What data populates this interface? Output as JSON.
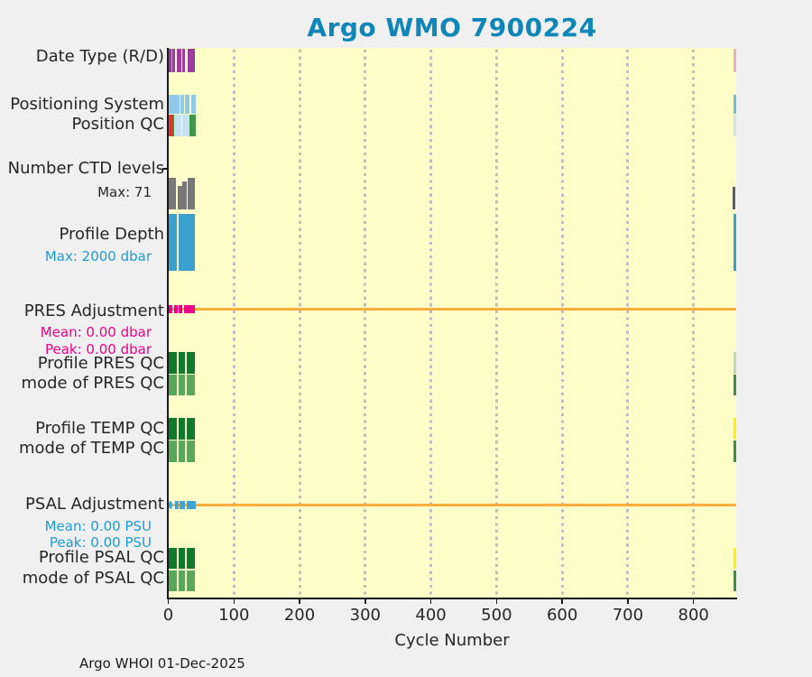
{
  "title": {
    "text": "Argo WMO 7900224",
    "color": "#0E87B8"
  },
  "footer": {
    "text": "Argo WHOI 01-Dec-2025"
  },
  "left_labels": [
    {
      "id": "date",
      "text": "Date Type (R/D)",
      "type": "main",
      "color": "#262626"
    },
    {
      "id": "pos",
      "text": "Positioning System",
      "type": "main",
      "color": "#262626"
    },
    {
      "id": "posqc",
      "text": "Position QC",
      "type": "main",
      "color": "#262626"
    },
    {
      "id": "ctd",
      "text": "Number CTD levels",
      "type": "main",
      "color": "#262626"
    },
    {
      "id": "ctdmax",
      "text": "Max: 71",
      "type": "sub",
      "color": "#262626"
    },
    {
      "id": "depth",
      "text": "Profile Depth",
      "type": "main",
      "color": "#262626"
    },
    {
      "id": "depthmax",
      "text": "Max: 2000 dbar",
      "type": "sub",
      "color": "#1E9BD6"
    },
    {
      "id": "presadj",
      "text": "PRES Adjustment",
      "type": "main",
      "color": "#262626"
    },
    {
      "id": "presmean",
      "text": "Mean: 0.00 dbar",
      "type": "sub",
      "color": "#EC008C"
    },
    {
      "id": "prespeak",
      "text": "Peak: 0.00 dbar",
      "type": "sub",
      "color": "#EC008C"
    },
    {
      "id": "presqc",
      "text": "Profile PRES QC",
      "type": "main",
      "color": "#262626"
    },
    {
      "id": "presmode",
      "text": "mode of PRES QC",
      "type": "main",
      "color": "#262626"
    },
    {
      "id": "tempqc",
      "text": "Profile TEMP QC",
      "type": "main",
      "color": "#262626"
    },
    {
      "id": "tempmode",
      "text": "mode of TEMP QC",
      "type": "main",
      "color": "#262626"
    },
    {
      "id": "psaladj",
      "text": "PSAL Adjustment",
      "type": "main",
      "color": "#262626"
    },
    {
      "id": "psalmean",
      "text": "Mean: 0.00 PSU",
      "type": "sub",
      "color": "#1E9BD6"
    },
    {
      "id": "psalpeak",
      "text": "Peak: 0.00 PSU",
      "type": "sub",
      "color": "#1E9BD6"
    },
    {
      "id": "psalqc",
      "text": "Profile PSAL QC",
      "type": "main",
      "color": "#262626"
    },
    {
      "id": "psalmode",
      "text": "mode of PSAL QC",
      "type": "main",
      "color": "#262626"
    }
  ],
  "chart_data": {
    "type": "status-timeline",
    "title": "Argo WMO 7900224",
    "xlabel": "Cycle Number",
    "x_min": 0,
    "x_max": 865,
    "x_ticks": [
      0,
      100,
      200,
      300,
      400,
      500,
      600,
      700,
      800
    ],
    "plot_bg": "#FEFEC8",
    "grid_color": "#BDBDBD",
    "annotations": {
      "ctd_levels_max": 71,
      "profile_depth_max_dbar": 2000,
      "pres_adjustment_mean_dbar": 0.0,
      "pres_adjustment_peak_dbar": 0.0,
      "psal_adjustment_mean_psu": 0.0,
      "psal_adjustment_peak_psu": 0.0
    },
    "rows": [
      {
        "id": "date_type",
        "band": "date",
        "label": "Date Type (R/D)",
        "bars": [
          {
            "c0": 0.5,
            "c1": 7,
            "color": "#9C3C9C"
          },
          {
            "c0": 8,
            "c1": 10.5,
            "color": "#9C3C9C"
          },
          {
            "c0": 13.5,
            "c1": 20,
            "color": "#9C3C9C"
          },
          {
            "c0": 20.8,
            "c1": 25.8,
            "color": "#9C3C9C"
          },
          {
            "c0": 29,
            "c1": 36,
            "color": "#9C3C9C"
          },
          {
            "c0": 36.8,
            "c1": 41,
            "color": "#9C3C9C"
          },
          {
            "c0": 860.3,
            "c1": 864.6,
            "color": "#E9AFC9"
          }
        ],
        "stripes": [
          {
            "c0": 4.4,
            "c1": 5.3,
            "color": "#CE8BCE"
          }
        ]
      },
      {
        "id": "positioning_system",
        "band": "pos",
        "label": "Positioning System",
        "bars": [
          {
            "c0": 0,
            "c1": 17,
            "color": "#90C8E8"
          },
          {
            "c0": 19,
            "c1": 24.3,
            "color": "#90C8E8"
          },
          {
            "c0": 25.5,
            "c1": 32.5,
            "color": "#90C8E8"
          },
          {
            "c0": 35,
            "c1": 42,
            "color": "#90C8E8"
          },
          {
            "c0": 860.3,
            "c1": 864.6,
            "color": "#6FBCD8"
          }
        ]
      },
      {
        "id": "position_qc",
        "band": "posqc",
        "label": "Position QC",
        "bars": [
          {
            "c0": 0,
            "c1": 8.5,
            "color": "#42984A"
          },
          {
            "c0": 8.5,
            "c1": 19.8,
            "color": "#C9E2F2"
          },
          {
            "c0": 20.8,
            "c1": 31.8,
            "color": "#C9E2F2"
          },
          {
            "c0": 31.8,
            "c1": 41.5,
            "color": "#42984A"
          },
          {
            "c0": 860.3,
            "c1": 864.6,
            "color": "#CAE6F2"
          }
        ],
        "stripes": [
          {
            "c0": 2.5,
            "c1": 3.3,
            "color": "#E53228"
          },
          {
            "c0": 5.3,
            "c1": 6.1,
            "color": "#E53228"
          }
        ]
      },
      {
        "id": "ctd_levels",
        "band": "ctd",
        "label": "Number CTD levels",
        "sublabel": "Max: 71",
        "max": 71,
        "bars": [
          {
            "c0": 0,
            "c1": 12.3,
            "v": 69,
            "color": "#787878"
          },
          {
            "c0": 15,
            "c1": 21,
            "v": 52,
            "color": "#787878"
          },
          {
            "c0": 21,
            "c1": 27.5,
            "v": 62,
            "color": "#787878"
          },
          {
            "c0": 29,
            "c1": 41,
            "v": 69,
            "color": "#787878"
          },
          {
            "c0": 860,
            "c1": 864,
            "v": 50,
            "color": "#5E5E5E"
          }
        ]
      },
      {
        "id": "profile_depth",
        "band": "depth",
        "label": "Profile Depth",
        "sublabel": "Max: 2000 dbar",
        "max": 2000,
        "bars": [
          {
            "c0": 0,
            "c1": 12.8,
            "v": 2000,
            "color": "#3AA0CE"
          },
          {
            "c0": 15.5,
            "c1": 26.3,
            "v": 2000,
            "color": "#3AA0CE"
          },
          {
            "c0": 27,
            "c1": 31.8,
            "v": 2000,
            "color": "#3AA0CE"
          },
          {
            "c0": 32.8,
            "c1": 41.2,
            "v": 2000,
            "color": "#3AA0CE"
          },
          {
            "c0": 860.3,
            "c1": 864.6,
            "v": 2000,
            "color": "#3AA0CE"
          }
        ]
      },
      {
        "id": "pres_adjustment",
        "band": "presadj",
        "label": "PRES Adjustment",
        "line": {
          "c0": 5,
          "c1": 864.6,
          "color": "#FBAE3C",
          "value_dbar": 0.0
        },
        "markers": [
          {
            "c0": 0.3,
            "c1": 6,
            "color": "#EC008C"
          },
          {
            "c0": 9.5,
            "c1": 11.2,
            "color": "#EC008C"
          },
          {
            "c0": 15.3,
            "c1": 21.3,
            "color": "#EC008C"
          },
          {
            "c0": 23.8,
            "c1": 26.8,
            "color": "#EC008C"
          },
          {
            "c0": 29.3,
            "c1": 40.6,
            "color": "#EC008C"
          }
        ]
      },
      {
        "id": "profile_pres_qc",
        "band": "presqc",
        "label": "Profile PRES QC",
        "bars": [
          {
            "c0": 0,
            "c1": 13,
            "color": "#107A2C"
          },
          {
            "c0": 15.5,
            "c1": 26,
            "color": "#107A2C"
          },
          {
            "c0": 27.6,
            "c1": 40.6,
            "color": "#107A2C"
          },
          {
            "c0": 860.3,
            "c1": 864.6,
            "color": "#BCD9BC"
          }
        ]
      },
      {
        "id": "mode_pres_qc",
        "band": "presmode",
        "label": "mode of PRES QC",
        "bars": [
          {
            "c0": 0,
            "c1": 13,
            "color": "#58A85C"
          },
          {
            "c0": 15.5,
            "c1": 26,
            "color": "#58A85C"
          },
          {
            "c0": 27.6,
            "c1": 40.6,
            "color": "#58A85C"
          },
          {
            "c0": 860.3,
            "c1": 864.6,
            "color": "#3E8E49"
          }
        ]
      },
      {
        "id": "profile_temp_qc",
        "band": "tempqc",
        "label": "Profile TEMP QC",
        "bars": [
          {
            "c0": 0,
            "c1": 13,
            "color": "#107A2C"
          },
          {
            "c0": 15.5,
            "c1": 26,
            "color": "#107A2C"
          },
          {
            "c0": 27.6,
            "c1": 40.6,
            "color": "#107A2C"
          },
          {
            "c0": 860.3,
            "c1": 864.6,
            "color": "#FFF100"
          }
        ]
      },
      {
        "id": "mode_temp_qc",
        "band": "tempmode",
        "label": "mode of TEMP QC",
        "bars": [
          {
            "c0": 0,
            "c1": 13,
            "color": "#58A85C"
          },
          {
            "c0": 15.5,
            "c1": 26,
            "color": "#58A85C"
          },
          {
            "c0": 27.6,
            "c1": 40.6,
            "color": "#58A85C"
          },
          {
            "c0": 860.3,
            "c1": 864.6,
            "color": "#3E8E49"
          }
        ]
      },
      {
        "id": "psal_adjustment",
        "band": "psaladj",
        "label": "PSAL Adjustment",
        "line": {
          "c0": 4,
          "c1": 864.6,
          "color": "#FBAE3C",
          "value_psu": 0.0
        },
        "markers": [
          {
            "c0": 0.3,
            "c1": 6,
            "color": "#3FA5D5",
            "shape": "round"
          },
          {
            "c0": 10,
            "c1": 13,
            "color": "#3FA5D5"
          },
          {
            "c0": 17,
            "c1": 25,
            "color": "#3FA5D5"
          },
          {
            "c0": 27.8,
            "c1": 30.5,
            "color": "#3FA5D5"
          },
          {
            "c0": 32,
            "c1": 42,
            "color": "#3FA5D5"
          }
        ]
      },
      {
        "id": "profile_psal_qc",
        "band": "psalqc",
        "label": "Profile PSAL QC",
        "bars": [
          {
            "c0": 0,
            "c1": 13,
            "color": "#107A2C"
          },
          {
            "c0": 15.5,
            "c1": 26,
            "color": "#107A2C"
          },
          {
            "c0": 27.6,
            "c1": 40.6,
            "color": "#107A2C"
          },
          {
            "c0": 860.3,
            "c1": 864.6,
            "color": "#FFF100"
          }
        ]
      },
      {
        "id": "mode_psal_qc",
        "band": "psalmode",
        "label": "mode of PSAL QC",
        "bars": [
          {
            "c0": 0,
            "c1": 13,
            "color": "#58A85C"
          },
          {
            "c0": 15.5,
            "c1": 26,
            "color": "#58A85C"
          },
          {
            "c0": 27.6,
            "c1": 40.6,
            "color": "#58A85C"
          },
          {
            "c0": 860.3,
            "c1": 864.6,
            "color": "#3E8E49"
          }
        ]
      }
    ]
  }
}
